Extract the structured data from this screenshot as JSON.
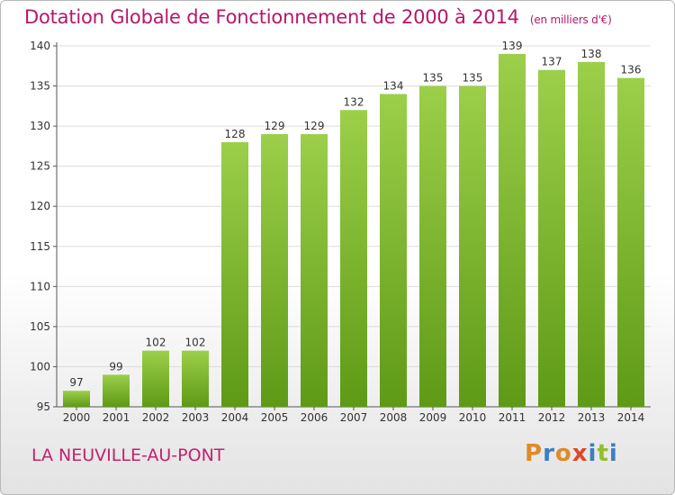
{
  "header": {
    "title": "Dotation Globale de Fonctionnement de 2000 à 2014",
    "subtitle": "(en milliers d'€)"
  },
  "footer": {
    "town": "LA NEUVILLE-AU-PONT",
    "logo_letters": [
      "P",
      "r",
      "o",
      "x",
      "i",
      "t",
      "i"
    ],
    "logo_colors": [
      "#e08a2a",
      "#3a7fc4",
      "#e08a2a",
      "#e0462a",
      "#3a7fc4",
      "#8fbf2a",
      "#3a7fc4"
    ]
  },
  "colors": {
    "bar_top": "#9ccf4a",
    "bar_bottom": "#5e9a16",
    "grid": "#dcdcdc",
    "title": "#b5176b"
  },
  "chart_data": {
    "type": "bar",
    "title": "Dotation Globale de Fonctionnement de 2000 à 2014",
    "ylabel": "en milliers d'€",
    "xlabel": "",
    "categories": [
      "2000",
      "2001",
      "2002",
      "2003",
      "2004",
      "2005",
      "2006",
      "2007",
      "2008",
      "2009",
      "2010",
      "2011",
      "2012",
      "2013",
      "2014"
    ],
    "values": [
      97,
      99,
      102,
      102,
      128,
      129,
      129,
      132,
      134,
      135,
      135,
      139,
      137,
      138,
      136
    ],
    "ylim": [
      95,
      140
    ],
    "yticks": [
      95,
      100,
      105,
      110,
      115,
      120,
      125,
      130,
      135,
      140
    ],
    "grid": true
  }
}
